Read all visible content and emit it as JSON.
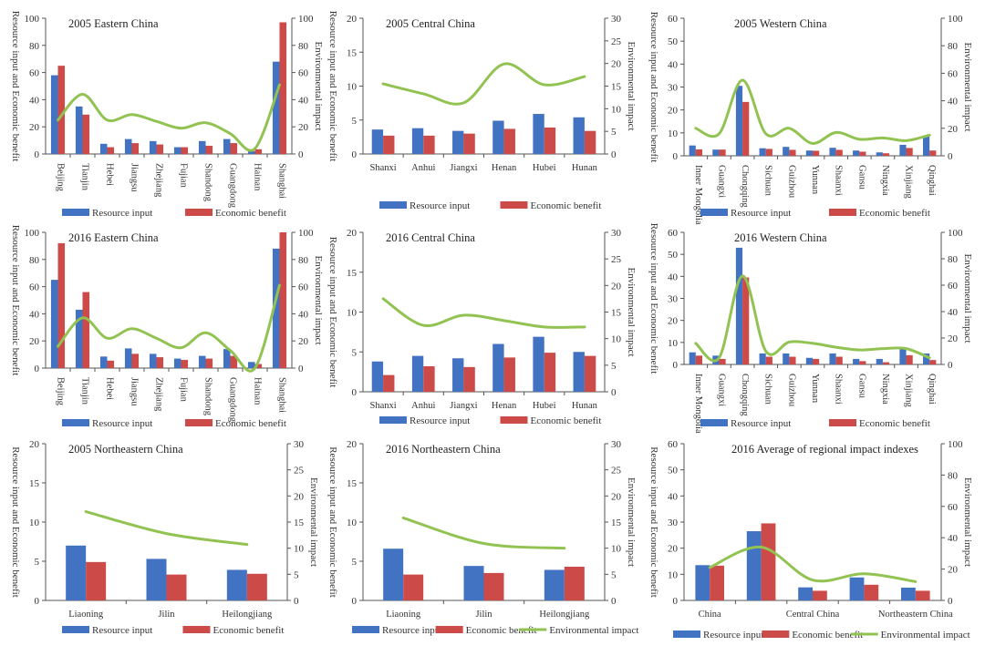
{
  "colors": {
    "resource_input": "#4272c2",
    "economic_benefit": "#cc4a48",
    "environmental_impact": "#92c352"
  },
  "legend_labels": {
    "resource_input": "Resource input",
    "economic_benefit": "Economic benefit",
    "environmental_impact": "Environmental impact"
  },
  "chart_data": [
    {
      "type": "bar+line",
      "title": "2005 Eastern China",
      "ylabel": "Resource input and Economic benefit",
      "y2label": "Environmental impact",
      "ylim": [
        0,
        100
      ],
      "y2lim": [
        0,
        100
      ],
      "yticks": [
        "0",
        "20",
        "40",
        "60",
        "80",
        "100"
      ],
      "y2ticks": [
        "0",
        "20",
        "40",
        "60",
        "80",
        "100"
      ],
      "categories": [
        "Beijing",
        "Tianjin",
        "Hebei",
        "Jiangsu",
        "Zhejiang",
        "Fujian",
        "Shandong",
        "Guangdong",
        "Hainan",
        "Shanghai"
      ],
      "series": [
        {
          "name": "Resource input",
          "values": [
            58,
            35,
            7.5,
            11,
            9.5,
            5,
            9.5,
            11,
            2,
            68
          ]
        },
        {
          "name": "Economic benefit",
          "values": [
            65,
            29,
            5,
            8,
            7,
            5,
            6,
            8,
            3.5,
            97
          ]
        },
        {
          "name": "Environmental impact",
          "axis": "right",
          "values": [
            25,
            44,
            25,
            29,
            24,
            19,
            23,
            15,
            4,
            51
          ]
        }
      ],
      "legend": [
        "resource_input",
        "economic_benefit"
      ]
    },
    {
      "type": "bar+line",
      "title": "2005 Central China",
      "ylabel": "Resource input and Economic benefit",
      "y2label": "Environmental impact",
      "ylim": [
        0,
        20
      ],
      "y2lim": [
        0,
        30
      ],
      "yticks": [
        "0",
        "5",
        "10",
        "15",
        "20"
      ],
      "y2ticks": [
        "0",
        "5",
        "10",
        "15",
        "20",
        "25",
        "30"
      ],
      "categories": [
        "Shanxi",
        "Anhui",
        "Jiangxi",
        "Henan",
        "Hubei",
        "Hunan"
      ],
      "series": [
        {
          "name": "Resource input",
          "values": [
            3.6,
            3.8,
            3.4,
            4.9,
            5.9,
            5.4
          ]
        },
        {
          "name": "Economic benefit",
          "values": [
            2.7,
            2.7,
            3.0,
            3.7,
            3.9,
            3.4
          ]
        },
        {
          "name": "Environmental impact",
          "axis": "right",
          "values": [
            15.5,
            13.3,
            11.3,
            19.9,
            15.3,
            17.1
          ]
        }
      ],
      "legend": [
        "resource_input",
        "economic_benefit"
      ]
    },
    {
      "type": "bar+line",
      "title": "2005 Western China",
      "ylabel": "Resource input and Economic benefit",
      "y2label": "Environmental impact",
      "ylim": [
        0,
        60
      ],
      "y2lim": [
        0,
        100
      ],
      "yticks": [
        "0",
        "10",
        "20",
        "30",
        "40",
        "50",
        "60"
      ],
      "y2ticks": [
        "0",
        "20",
        "40",
        "60",
        "80",
        "100"
      ],
      "categories": [
        "Inner Mongolia",
        "Guangxi",
        "Chongqing",
        "Sichuan",
        "Guizhou",
        "Yunnan",
        "Shaanxi",
        "Gansu",
        "Ningxia",
        "Xinjiang",
        "Qinghai"
      ],
      "series": [
        {
          "name": "Resource input",
          "values": [
            4.5,
            2.7,
            30.5,
            3.3,
            3.9,
            2.3,
            3.5,
            2.3,
            1.5,
            4.8,
            8.5
          ]
        },
        {
          "name": "Economic benefit",
          "values": [
            2.8,
            2.7,
            23.5,
            3.0,
            2.6,
            2.2,
            2.6,
            1.8,
            1.1,
            3.4,
            2.3
          ]
        },
        {
          "name": "Environmental impact",
          "axis": "right",
          "values": [
            20,
            16,
            55,
            16,
            20,
            9,
            17,
            12,
            13,
            11,
            15
          ]
        }
      ],
      "legend": [
        "resource_input",
        "economic_benefit"
      ]
    },
    {
      "type": "bar+line",
      "title": "2016 Eastern China",
      "ylabel": "Resource input and Economic benefit",
      "y2label": "Environmental impact",
      "ylim": [
        0,
        100
      ],
      "y2lim": [
        0,
        100
      ],
      "yticks": [
        "0",
        "20",
        "40",
        "60",
        "80",
        "100"
      ],
      "y2ticks": [
        "0",
        "20",
        "40",
        "60",
        "80",
        "100"
      ],
      "categories": [
        "Beijing",
        "Tianjin",
        "Hebei",
        "Jiangsu",
        "Zhejiang",
        "Fujian",
        "Shandong",
        "Guangdong",
        "Hainan",
        "Shanghai"
      ],
      "series": [
        {
          "name": "Resource input",
          "values": [
            65,
            43,
            8.5,
            14.5,
            10.5,
            7,
            9,
            14,
            4.5,
            88
          ]
        },
        {
          "name": "Economic benefit",
          "values": [
            92,
            56,
            5.5,
            10.5,
            8,
            6,
            7,
            9,
            3,
            100
          ]
        },
        {
          "name": "Environmental impact",
          "axis": "right",
          "values": [
            16,
            37,
            22,
            29,
            22,
            15,
            26,
            13,
            0,
            61
          ]
        }
      ],
      "legend": [
        "resource_input",
        "economic_benefit"
      ]
    },
    {
      "type": "bar+line",
      "title": "2016 Central China",
      "ylabel": "Resource input and Economic benefit",
      "y2label": "Environmental impact",
      "ylim": [
        0,
        20
      ],
      "y2lim": [
        0,
        30
      ],
      "yticks": [
        "0",
        "5",
        "10",
        "15",
        "20"
      ],
      "y2ticks": [
        "0",
        "5",
        "10",
        "15",
        "20",
        "25",
        "30"
      ],
      "categories": [
        "Shanxi",
        "Anhui",
        "Jiangxi",
        "Henan",
        "Hubei",
        "Hunan"
      ],
      "series": [
        {
          "name": "Resource input",
          "values": [
            3.8,
            4.5,
            4.2,
            6.0,
            6.9,
            5.0
          ]
        },
        {
          "name": "Economic benefit",
          "values": [
            2.1,
            3.2,
            3.1,
            4.3,
            4.9,
            4.5
          ]
        },
        {
          "name": "Environmental impact",
          "axis": "right",
          "values": [
            17.5,
            12.5,
            14.4,
            13.4,
            12.2,
            12.2
          ]
        }
      ],
      "legend": [
        "resource_input",
        "economic_benefit"
      ]
    },
    {
      "type": "bar+line",
      "title": "2016 Western China",
      "ylabel": "Resource input and Economic benefit",
      "y2label": "Environmental impact",
      "ylim": [
        0,
        60
      ],
      "y2lim": [
        0,
        100
      ],
      "yticks": [
        "0",
        "10",
        "20",
        "30",
        "40",
        "50",
        "60"
      ],
      "y2ticks": [
        "0",
        "20",
        "40",
        "60",
        "80",
        "100"
      ],
      "categories": [
        "Inner Mongolia",
        "Guangxi",
        "Chongqing",
        "Sichuan",
        "Guizhou",
        "Yunnan",
        "Shaanxi",
        "Gansu",
        "Ningxia",
        "Xinjiang",
        "Qinghai"
      ],
      "series": [
        {
          "name": "Resource input",
          "values": [
            5.5,
            4,
            53,
            5,
            5,
            3,
            5,
            2.5,
            2.5,
            7,
            5
          ]
        },
        {
          "name": "Economic benefit",
          "values": [
            4,
            2.5,
            39.5,
            3.5,
            3.5,
            2.5,
            3.5,
            1.5,
            1,
            4.2,
            2
          ]
        },
        {
          "name": "Environmental impact",
          "axis": "right",
          "values": [
            16,
            5,
            67,
            10,
            17,
            16,
            13,
            11,
            12,
            12,
            5
          ]
        }
      ],
      "legend": [
        "resource_input",
        "economic_benefit"
      ]
    },
    {
      "type": "bar+line",
      "title": "2005 Northeastern China",
      "ylabel": "Resource input and Economic benefit",
      "y2label": "Environmental impact",
      "ylim": [
        0,
        20
      ],
      "y2lim": [
        0,
        30
      ],
      "yticks": [
        "0",
        "5",
        "10",
        "15",
        "20"
      ],
      "y2ticks": [
        "0",
        "5",
        "10",
        "15",
        "20",
        "25",
        "30"
      ],
      "categories": [
        "Liaoning",
        "Jilin",
        "Heilongjiang"
      ],
      "series": [
        {
          "name": "Resource input",
          "values": [
            7.0,
            5.3,
            3.9
          ]
        },
        {
          "name": "Economic benefit",
          "values": [
            4.9,
            3.3,
            3.4
          ]
        },
        {
          "name": "Environmental impact",
          "axis": "right",
          "values": [
            17.0,
            12.8,
            10.7
          ]
        }
      ],
      "legend": [
        "resource_input",
        "economic_benefit"
      ]
    },
    {
      "type": "bar+line",
      "title": "2016 Northeastern China",
      "ylabel": "Resource input and Economic benefit",
      "y2label": "Environmental impact",
      "ylim": [
        0,
        20
      ],
      "y2lim": [
        0,
        30
      ],
      "yticks": [
        "0",
        "5",
        "10",
        "15",
        "20"
      ],
      "y2ticks": [
        "0",
        "5",
        "10",
        "15",
        "20",
        "25",
        "30"
      ],
      "categories": [
        "Liaoning",
        "Jilin",
        "Heilongjiang"
      ],
      "series": [
        {
          "name": "Resource input",
          "values": [
            6.6,
            4.4,
            3.9
          ]
        },
        {
          "name": "Economic benefit",
          "values": [
            3.3,
            3.5,
            4.3
          ]
        },
        {
          "name": "Environmental impact",
          "axis": "right",
          "values": [
            15.8,
            10.9,
            10.0
          ]
        }
      ],
      "legend": [
        "resource_input",
        "economic_benefit",
        "environmental_impact"
      ]
    },
    {
      "type": "bar+line",
      "title": "2016 Average of regional impact indexes",
      "ylabel": "Resource input and Economic benefit",
      "y2label": "Environmental impact",
      "ylim": [
        0,
        60
      ],
      "y2lim": [
        0,
        100
      ],
      "yticks": [
        "0",
        "10",
        "20",
        "30",
        "40",
        "50",
        "60"
      ],
      "y2ticks": [
        "0",
        "20",
        "40",
        "60",
        "80",
        "100"
      ],
      "categories": [
        "China",
        "",
        "Central China",
        "",
        "Northeastern China"
      ],
      "series": [
        {
          "name": "Resource input",
          "values": [
            13.5,
            26.5,
            5,
            8.8,
            4.9
          ]
        },
        {
          "name": "Economic benefit",
          "values": [
            13.3,
            29.5,
            3.7,
            6,
            3.7
          ]
        },
        {
          "name": "Environmental impact",
          "axis": "right",
          "values": [
            21,
            34,
            13,
            17,
            12
          ]
        }
      ],
      "legend": [
        "resource_input",
        "economic_benefit",
        "environmental_impact"
      ]
    }
  ]
}
